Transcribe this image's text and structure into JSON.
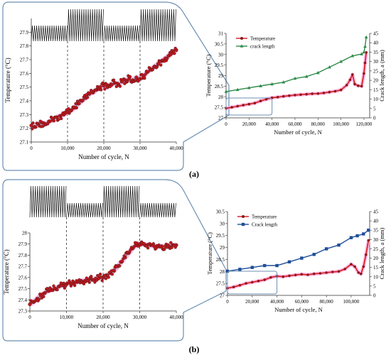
{
  "panel_labels": [
    "(a)",
    "(b)"
  ],
  "chart_data": [
    {
      "id": "a-zoom",
      "type": "scatter",
      "xlabel": "Number of cycle, N",
      "ylabel": "Temperature (°C)",
      "xlim": [
        0,
        40000
      ],
      "ylim": [
        27.1,
        28.0
      ],
      "xticks": [
        "0",
        "10,000",
        "20,000",
        "30,000",
        "40,000"
      ],
      "yticks": [
        "27.1",
        "27.2",
        "27.3",
        "27.4",
        "27.5",
        "27.6",
        "27.7",
        "27.8",
        "27.9"
      ],
      "dashed_lines_x": [
        10000,
        20000,
        30000
      ],
      "series": [
        {
          "color": "#c0161b",
          "x": [
            0,
            1000,
            2000,
            3000,
            4000,
            5000,
            6000,
            7000,
            8000,
            9000,
            10000,
            11000,
            12000,
            13000,
            14000,
            15000,
            16000,
            17000,
            18000,
            19000,
            20000,
            21000,
            22000,
            23000,
            24000,
            25000,
            26000,
            27000,
            28000,
            29000,
            30000,
            31000,
            32000,
            33000,
            34000,
            35000,
            36000,
            37000,
            38000,
            39000,
            40000
          ],
          "values": [
            27.22,
            27.21,
            27.23,
            27.24,
            27.23,
            27.25,
            27.26,
            27.28,
            27.29,
            27.3,
            27.32,
            27.33,
            27.35,
            27.38,
            27.4,
            27.42,
            27.45,
            27.46,
            27.48,
            27.5,
            27.51,
            27.5,
            27.52,
            27.53,
            27.52,
            27.54,
            27.55,
            27.56,
            27.55,
            27.57,
            27.56,
            27.58,
            27.61,
            27.63,
            27.65,
            27.67,
            27.69,
            27.71,
            27.73,
            27.75,
            27.77
          ]
        }
      ],
      "loading_wave": {
        "low_amplitude_ranges": [
          [
            0,
            10000
          ],
          [
            20000,
            30000
          ]
        ],
        "high_amplitude_ranges": [
          [
            10000,
            20000
          ],
          [
            30000,
            40000
          ]
        ]
      }
    },
    {
      "id": "a-full",
      "type": "line",
      "xlabel": "Number of cycle, N",
      "ylabel": "Temperature (°C)",
      "y2label": "Crack length, a (mm)",
      "xlim": [
        0,
        125000
      ],
      "ylim": [
        27,
        31
      ],
      "y2lim": [
        0,
        45
      ],
      "xticks": [
        "0",
        "20,000",
        "40,000",
        "60,000",
        "80,000",
        "100,000",
        "120,000"
      ],
      "yticks": [
        "27",
        "27.5",
        "28",
        "28.5",
        "29",
        "29.5",
        "30",
        "30.5",
        "31"
      ],
      "y2ticks": [
        "0",
        "5",
        "10",
        "15",
        "20",
        "25",
        "30",
        "35",
        "40",
        "45"
      ],
      "legend": [
        "Temperature",
        "crack length"
      ],
      "legend_position": "top-left",
      "series": [
        {
          "name": "Temperature",
          "color": "#8b1a1a",
          "x": [
            0,
            5000,
            10000,
            15000,
            20000,
            25000,
            30000,
            35000,
            40000,
            45000,
            50000,
            55000,
            60000,
            65000,
            70000,
            75000,
            80000,
            85000,
            90000,
            95000,
            100000,
            105000,
            108000,
            110000,
            112000,
            115000,
            118000,
            120000,
            121000,
            122000
          ],
          "values": [
            27.45,
            27.5,
            27.55,
            27.6,
            27.65,
            27.7,
            27.8,
            27.88,
            27.95,
            27.98,
            28.02,
            28.05,
            28.08,
            28.1,
            28.12,
            28.14,
            28.15,
            28.18,
            28.22,
            28.26,
            28.32,
            28.55,
            28.8,
            29.05,
            28.6,
            28.52,
            28.5,
            29.1,
            29.6,
            30.1
          ]
        },
        {
          "name": "crack length",
          "color": "#2e8b4a",
          "x": [
            0,
            10000,
            20000,
            30000,
            40000,
            50000,
            60000,
            70000,
            80000,
            90000,
            100000,
            110000,
            118000,
            120000,
            121000,
            122000
          ],
          "values": [
            14,
            15,
            16,
            17,
            18,
            19,
            21,
            22,
            24,
            27,
            30,
            33,
            34,
            35,
            38,
            43
          ]
        }
      ]
    },
    {
      "id": "b-zoom",
      "type": "scatter",
      "xlabel": "Number of cycle, N",
      "ylabel": "Temperature (°C)",
      "xlim": [
        0,
        40000
      ],
      "ylim": [
        27.3,
        28.0
      ],
      "xticks": [
        "0",
        "10,000",
        "20,000",
        "30,000",
        "40,000"
      ],
      "yticks": [
        "27.3",
        "27.4",
        "27.5",
        "27.6",
        "27.7",
        "27.8",
        "27.9",
        "28"
      ],
      "dashed_lines_x": [
        10000,
        20000,
        30000
      ],
      "series": [
        {
          "color": "#c0161b",
          "x": [
            0,
            1000,
            2000,
            3000,
            4000,
            5000,
            6000,
            7000,
            8000,
            9000,
            10000,
            11000,
            12000,
            13000,
            14000,
            15000,
            16000,
            17000,
            18000,
            19000,
            20000,
            21000,
            22000,
            23000,
            24000,
            25000,
            26000,
            27000,
            28000,
            29000,
            30000,
            31000,
            32000,
            33000,
            34000,
            35000,
            36000,
            37000,
            38000,
            39000,
            40000
          ],
          "values": [
            27.36,
            27.38,
            27.41,
            27.44,
            27.46,
            27.48,
            27.49,
            27.5,
            27.52,
            27.53,
            27.54,
            27.55,
            27.55,
            27.56,
            27.57,
            27.57,
            27.58,
            27.58,
            27.59,
            27.6,
            27.6,
            27.62,
            27.64,
            27.66,
            27.7,
            27.74,
            27.78,
            27.82,
            27.86,
            27.89,
            27.9,
            27.9,
            27.89,
            27.89,
            27.88,
            27.88,
            27.88,
            27.88,
            27.88,
            27.89,
            27.89
          ]
        }
      ],
      "loading_wave": {
        "low_amplitude_ranges": [
          [
            10000,
            20000
          ],
          [
            30000,
            40000
          ]
        ],
        "high_amplitude_ranges": [
          [
            0,
            10000
          ],
          [
            20000,
            30000
          ]
        ]
      }
    },
    {
      "id": "b-full",
      "type": "line",
      "xlabel": "Number of cycle, N",
      "ylabel": "Temperature (°C)",
      "y2label": "Crack length, a (mm)",
      "xlim": [
        0,
        115000
      ],
      "ylim": [
        27,
        30.5
      ],
      "y2lim": [
        0,
        45
      ],
      "xticks": [
        "0",
        "20,000",
        "40,000",
        "60,000",
        "80,000",
        "100,000"
      ],
      "yticks": [
        "27",
        "27.5",
        "28",
        "28.5",
        "29",
        "29.5",
        "30",
        "30.5"
      ],
      "y2ticks": [
        "0",
        "5",
        "10",
        "15",
        "20",
        "25",
        "30",
        "35",
        "40",
        "45"
      ],
      "legend": [
        "Temperature",
        "Crack length"
      ],
      "legend_position": "top-left",
      "series": [
        {
          "name": "Temperature",
          "color": "#8b1a1a",
          "x": [
            0,
            5000,
            10000,
            15000,
            20000,
            25000,
            30000,
            35000,
            40000,
            45000,
            50000,
            55000,
            60000,
            65000,
            70000,
            75000,
            80000,
            85000,
            90000,
            95000,
            100000,
            103000,
            106000,
            108000,
            110000,
            112000,
            114000
          ],
          "values": [
            27.3,
            27.35,
            27.42,
            27.5,
            27.55,
            27.6,
            27.65,
            27.75,
            27.8,
            27.78,
            27.82,
            27.85,
            27.88,
            27.86,
            27.9,
            27.92,
            27.95,
            27.98,
            28.0,
            28.1,
            28.3,
            28.2,
            27.95,
            27.9,
            28.2,
            28.7,
            29.3
          ]
        },
        {
          "name": "Crack length",
          "color": "#1f4e99",
          "x": [
            0,
            10000,
            20000,
            30000,
            40000,
            50000,
            60000,
            70000,
            80000,
            90000,
            100000,
            105000,
            110000,
            114000
          ],
          "values": [
            13,
            14,
            15,
            16,
            16,
            18,
            20,
            22,
            25,
            27,
            31,
            32,
            33,
            35
          ]
        }
      ]
    }
  ]
}
